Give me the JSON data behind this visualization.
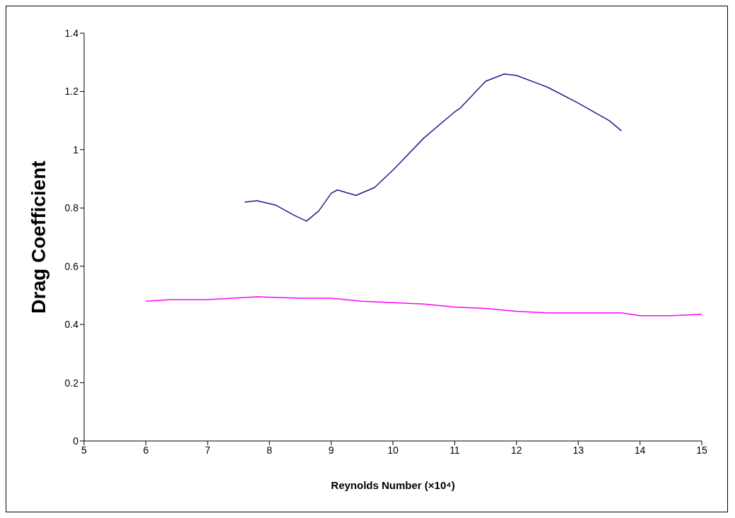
{
  "chart_data": {
    "type": "line",
    "xlabel": "Reynolds Number (×10⁴)",
    "ylabel": "Drag Coefficient",
    "xlim": [
      5,
      15
    ],
    "xticks": [
      5,
      6,
      7,
      8,
      9,
      10,
      11,
      12,
      13,
      14,
      15
    ],
    "ylim": [
      0,
      1.4
    ],
    "yticks": [
      0,
      0.2,
      0.4,
      0.6,
      0.8,
      1,
      1.2,
      1.4
    ],
    "grid": false,
    "marker": "none",
    "line_style": "solid",
    "series": [
      {
        "color": "#1c1c8c",
        "x": [
          7.6,
          7.8,
          8.1,
          8.4,
          8.6,
          8.8,
          9.0,
          9.1,
          9.4,
          9.7,
          10.0,
          10.5,
          11.0,
          11.1,
          11.5,
          11.8,
          12.0,
          12.5,
          13.0,
          13.5,
          13.7
        ],
        "values": [
          0.82,
          0.825,
          0.81,
          0.775,
          0.755,
          0.79,
          0.85,
          0.862,
          0.843,
          0.87,
          0.93,
          1.04,
          1.13,
          1.145,
          1.235,
          1.26,
          1.255,
          1.215,
          1.16,
          1.1,
          1.065
        ]
      },
      {
        "color": "#ff00ff",
        "x": [
          6.0,
          6.4,
          7.0,
          7.8,
          8.5,
          9.0,
          9.5,
          10.0,
          10.5,
          11.0,
          11.5,
          12.0,
          12.5,
          13.0,
          13.7,
          14.0,
          14.5,
          15.0
        ],
        "values": [
          0.48,
          0.485,
          0.485,
          0.495,
          0.49,
          0.49,
          0.48,
          0.475,
          0.47,
          0.46,
          0.455,
          0.445,
          0.44,
          0.44,
          0.44,
          0.43,
          0.43,
          0.435
        ]
      }
    ]
  }
}
